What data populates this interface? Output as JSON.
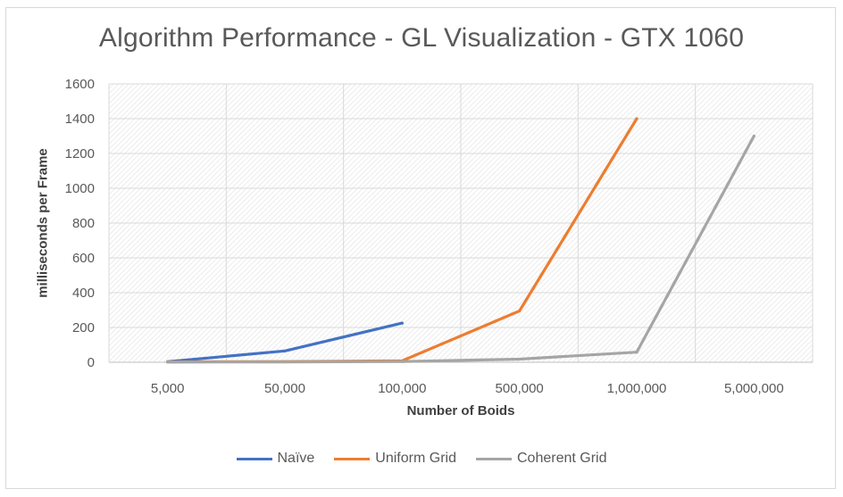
{
  "chart_data": {
    "type": "line",
    "title": "Algorithm Performance - GL Visualization - GTX 1060",
    "xlabel": "Number of Boids",
    "ylabel": "milliseconds per Frame",
    "categories": [
      "5,000",
      "50,000",
      "100,000",
      "500,000",
      "1,000,000",
      "5,000,000"
    ],
    "ylim": [
      0,
      1600
    ],
    "yticks": [
      "0",
      "200",
      "400",
      "600",
      "800",
      "1000",
      "1200",
      "1400",
      "1600"
    ],
    "grid": true,
    "legend_position": "bottom",
    "series": [
      {
        "name": "Naïve",
        "color": "#4472c4",
        "values": [
          3,
          65,
          225,
          null,
          null,
          null
        ]
      },
      {
        "name": "Uniform Grid",
        "color": "#ed7d31",
        "values": [
          2,
          4,
          8,
          295,
          1400,
          null
        ]
      },
      {
        "name": "Coherent Grid",
        "color": "#a5a5a5",
        "values": [
          1,
          2,
          4,
          18,
          58,
          1300
        ]
      }
    ]
  }
}
